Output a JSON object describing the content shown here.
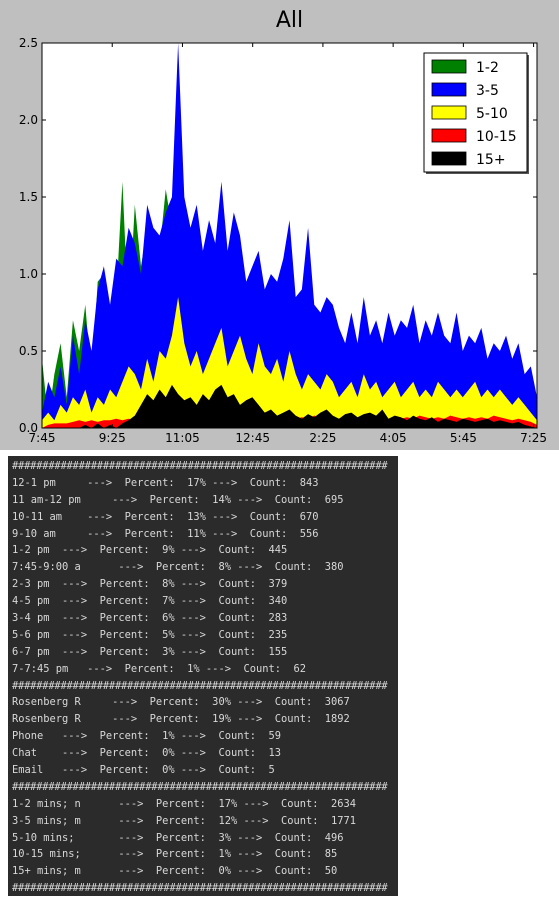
{
  "chart_data": {
    "type": "area",
    "title": "All",
    "xlabel": "",
    "ylabel": "",
    "ylim": [
      0,
      2.5
    ],
    "yticks": [
      "0.0",
      "0.5",
      "1.0",
      "1.5",
      "2.0",
      "2.5"
    ],
    "xticks": [
      "7:45",
      "9:25",
      "11:05",
      "12:45",
      "2:25",
      "4:05",
      "5:45",
      "7:25"
    ],
    "legend_position": "top-right",
    "grid": false,
    "series": [
      {
        "name": "1-2",
        "color": "#008000",
        "x": [
          0,
          2,
          4,
          6,
          8,
          10,
          12,
          14,
          16,
          18,
          20,
          22,
          24,
          26,
          28,
          30,
          32,
          34,
          36,
          38,
          40,
          42,
          44,
          46,
          48,
          50,
          52,
          54,
          56,
          58,
          60,
          62,
          64,
          66,
          68,
          70,
          72,
          74,
          76,
          78,
          80,
          82,
          84,
          86,
          88,
          90,
          92,
          94,
          96,
          98,
          100,
          102,
          104,
          106,
          108,
          110,
          112,
          114,
          116,
          118,
          120,
          122,
          124,
          126,
          128,
          130,
          132,
          134,
          136,
          138,
          140,
          142,
          144,
          146,
          148,
          150,
          152,
          154,
          156,
          158,
          160
        ],
        "values": [
          0.45,
          0.05,
          0.35,
          0.55,
          0.2,
          0.7,
          0.5,
          0.8,
          0.3,
          0.95,
          1.0,
          0.6,
          0.85,
          1.6,
          0.7,
          1.45,
          1.05,
          1.3,
          1.2,
          1.15,
          1.55,
          1.3,
          1.4,
          1.1,
          0.95,
          1.1,
          1.0,
          0.9,
          0.85,
          0.95,
          0.7,
          0.95,
          0.65,
          0.75,
          0.55,
          0.95,
          0.6,
          0.75,
          0.55,
          0.5,
          0.45,
          0.55,
          0.35,
          0.6,
          0.5,
          0.55,
          0.4,
          0.45,
          0.6,
          0.45,
          0.7,
          0.4,
          0.55,
          0.4,
          0.65,
          0.5,
          0.4,
          0.45,
          0.35,
          0.5,
          0.3,
          0.55,
          0.4,
          0.35,
          0.3,
          0.45,
          0.3,
          0.4,
          0.35,
          0.5,
          0.4,
          0.35,
          0.45,
          0.3,
          0.5,
          0.35,
          0.3,
          0.25,
          0.3,
          0.2,
          0.1
        ]
      },
      {
        "name": "3-5",
        "color": "#0000ff",
        "x": [
          0,
          2,
          4,
          6,
          8,
          10,
          12,
          14,
          16,
          18,
          20,
          22,
          24,
          26,
          28,
          30,
          32,
          34,
          36,
          38,
          40,
          42,
          44,
          46,
          48,
          50,
          52,
          54,
          56,
          58,
          60,
          62,
          64,
          66,
          68,
          70,
          72,
          74,
          76,
          78,
          80,
          82,
          84,
          86,
          88,
          90,
          92,
          94,
          96,
          98,
          100,
          102,
          104,
          106,
          108,
          110,
          112,
          114,
          116,
          118,
          120,
          122,
          124,
          126,
          128,
          130,
          132,
          134,
          136,
          138,
          140,
          142,
          144,
          146,
          148,
          150,
          152,
          154,
          156,
          158,
          160
        ],
        "values": [
          0.1,
          0.3,
          0.2,
          0.4,
          0.15,
          0.6,
          0.35,
          0.7,
          0.5,
          0.9,
          1.05,
          0.8,
          1.1,
          1.05,
          1.3,
          1.2,
          1.0,
          1.45,
          1.3,
          1.25,
          1.4,
          1.5,
          2.5,
          1.5,
          1.3,
          1.45,
          1.15,
          1.35,
          1.2,
          1.6,
          1.15,
          1.4,
          1.25,
          0.95,
          1.05,
          1.15,
          0.9,
          1.0,
          0.95,
          1.1,
          1.35,
          0.85,
          0.9,
          1.3,
          0.8,
          0.75,
          0.85,
          0.8,
          0.65,
          0.55,
          0.75,
          0.55,
          0.85,
          0.6,
          0.7,
          0.55,
          0.75,
          0.6,
          0.7,
          0.65,
          0.8,
          0.55,
          0.7,
          0.6,
          0.75,
          0.6,
          0.55,
          0.75,
          0.5,
          0.6,
          0.55,
          0.65,
          0.45,
          0.55,
          0.5,
          0.6,
          0.45,
          0.55,
          0.35,
          0.4,
          0.2
        ]
      },
      {
        "name": "5-10",
        "color": "#ffff00",
        "x": [
          0,
          2,
          4,
          6,
          8,
          10,
          12,
          14,
          16,
          18,
          20,
          22,
          24,
          26,
          28,
          30,
          32,
          34,
          36,
          38,
          40,
          42,
          44,
          46,
          48,
          50,
          52,
          54,
          56,
          58,
          60,
          62,
          64,
          66,
          68,
          70,
          72,
          74,
          76,
          78,
          80,
          82,
          84,
          86,
          88,
          90,
          92,
          94,
          96,
          98,
          100,
          102,
          104,
          106,
          108,
          110,
          112,
          114,
          116,
          118,
          120,
          122,
          124,
          126,
          128,
          130,
          132,
          134,
          136,
          138,
          140,
          142,
          144,
          146,
          148,
          150,
          152,
          154,
          156,
          158,
          160
        ],
        "values": [
          0.05,
          0.1,
          0.05,
          0.15,
          0.1,
          0.2,
          0.15,
          0.25,
          0.1,
          0.2,
          0.15,
          0.25,
          0.2,
          0.3,
          0.4,
          0.35,
          0.25,
          0.45,
          0.3,
          0.5,
          0.45,
          0.6,
          0.85,
          0.55,
          0.4,
          0.5,
          0.35,
          0.45,
          0.55,
          0.65,
          0.4,
          0.5,
          0.6,
          0.45,
          0.35,
          0.55,
          0.4,
          0.35,
          0.45,
          0.3,
          0.5,
          0.35,
          0.25,
          0.35,
          0.3,
          0.25,
          0.35,
          0.3,
          0.2,
          0.25,
          0.3,
          0.2,
          0.35,
          0.25,
          0.3,
          0.2,
          0.25,
          0.3,
          0.2,
          0.25,
          0.3,
          0.2,
          0.25,
          0.2,
          0.3,
          0.25,
          0.2,
          0.25,
          0.2,
          0.25,
          0.3,
          0.2,
          0.25,
          0.2,
          0.25,
          0.2,
          0.15,
          0.2,
          0.15,
          0.1,
          0.05
        ]
      },
      {
        "name": "10-15",
        "color": "#ff0000",
        "x": [
          0,
          2,
          4,
          6,
          8,
          10,
          12,
          14,
          16,
          18,
          20,
          22,
          24,
          26,
          28,
          30,
          32,
          34,
          36,
          38,
          40,
          42,
          44,
          46,
          48,
          50,
          52,
          54,
          56,
          58,
          60,
          62,
          64,
          66,
          68,
          70,
          72,
          74,
          76,
          78,
          80,
          82,
          84,
          86,
          88,
          90,
          92,
          94,
          96,
          98,
          100,
          102,
          104,
          106,
          108,
          110,
          112,
          114,
          116,
          118,
          120,
          122,
          124,
          126,
          128,
          130,
          132,
          134,
          136,
          138,
          140,
          142,
          144,
          146,
          148,
          150,
          152,
          154,
          156,
          158,
          160
        ],
        "values": [
          0,
          0.02,
          0.03,
          0.03,
          0.03,
          0.04,
          0.05,
          0.04,
          0.05,
          0.04,
          0.05,
          0.05,
          0.06,
          0.05,
          0.06,
          0.05,
          0.07,
          0.06,
          0.08,
          0.06,
          0.08,
          0.07,
          0.1,
          0.08,
          0.07,
          0.06,
          0.07,
          0.08,
          0.12,
          0.06,
          0.09,
          0.07,
          0.08,
          0.06,
          0.07,
          0.09,
          0.06,
          0.07,
          0.06,
          0.08,
          0.07,
          0.06,
          0.07,
          0.06,
          0.08,
          0.07,
          0.06,
          0.07,
          0.06,
          0.08,
          0.07,
          0.06,
          0.07,
          0.06,
          0.08,
          0.07,
          0.06,
          0.07,
          0.06,
          0.07,
          0.06,
          0.08,
          0.07,
          0.06,
          0.07,
          0.06,
          0.08,
          0.07,
          0.06,
          0.07,
          0.06,
          0.07,
          0.06,
          0.08,
          0.07,
          0.06,
          0.05,
          0.06,
          0.05,
          0.04,
          0.02
        ]
      },
      {
        "name": "15+",
        "color": "#000000",
        "x": [
          0,
          2,
          4,
          6,
          8,
          10,
          12,
          14,
          16,
          18,
          20,
          22,
          24,
          26,
          28,
          30,
          32,
          34,
          36,
          38,
          40,
          42,
          44,
          46,
          48,
          50,
          52,
          54,
          56,
          58,
          60,
          62,
          64,
          66,
          68,
          70,
          72,
          74,
          76,
          78,
          80,
          82,
          84,
          86,
          88,
          90,
          92,
          94,
          96,
          98,
          100,
          102,
          104,
          106,
          108,
          110,
          112,
          114,
          116,
          118,
          120,
          122,
          124,
          126,
          128,
          130,
          132,
          134,
          136,
          138,
          140,
          142,
          144,
          146,
          148,
          150,
          152,
          154,
          156,
          158,
          160
        ],
        "values": [
          0,
          0,
          0,
          0,
          0,
          0,
          0,
          0.02,
          0,
          0.03,
          0,
          0.02,
          0,
          0.03,
          0.05,
          0.08,
          0.15,
          0.22,
          0.18,
          0.25,
          0.2,
          0.28,
          0.22,
          0.18,
          0.2,
          0.15,
          0.22,
          0.18,
          0.25,
          0.28,
          0.2,
          0.22,
          0.15,
          0.18,
          0.2,
          0.15,
          0.1,
          0.12,
          0.08,
          0.1,
          0.12,
          0.08,
          0.06,
          0.09,
          0.07,
          0.1,
          0.12,
          0.08,
          0.06,
          0.09,
          0.1,
          0.07,
          0.09,
          0.1,
          0.08,
          0.12,
          0.06,
          0.08,
          0.07,
          0.05,
          0.08,
          0.06,
          0.05,
          0.07,
          0.04,
          0.06,
          0.05,
          0.04,
          0.06,
          0.05,
          0.04,
          0.05,
          0.06,
          0.04,
          0.05,
          0.04,
          0.03,
          0.04,
          0.02,
          0.01,
          0
        ]
      }
    ]
  },
  "console": {
    "lines": [
      {
        "text": "##############################################################",
        "sep": true
      },
      {
        "text": "12-1 pm     --->  Percent:  17% --->  Count:  843"
      },
      {
        "text": "11 am-12 pm     --->  Percent:  14% --->  Count:  695"
      },
      {
        "text": "10-11 am    --->  Percent:  13% --->  Count:  670"
      },
      {
        "text": "9-10 am     --->  Percent:  11% --->  Count:  556"
      },
      {
        "text": "1-2 pm  --->  Percent:  9% --->  Count:  445"
      },
      {
        "text": "7:45-9:00 a      --->  Percent:  8% --->  Count:  380"
      },
      {
        "text": "2-3 pm  --->  Percent:  8% --->  Count:  379"
      },
      {
        "text": "4-5 pm  --->  Percent:  7% --->  Count:  340"
      },
      {
        "text": "3-4 pm  --->  Percent:  6% --->  Count:  283"
      },
      {
        "text": "5-6 pm  --->  Percent:  5% --->  Count:  235"
      },
      {
        "text": "6-7 pm  --->  Percent:  3% --->  Count:  155"
      },
      {
        "text": "7-7:45 pm   --->  Percent:  1% --->  Count:  62"
      },
      {
        "text": "##############################################################",
        "sep": true
      },
      {
        "text": "Rosenberg R     --->  Percent:  30% --->  Count:  3067"
      },
      {
        "text": "Rosenberg R     --->  Percent:  19% --->  Count:  1892"
      },
      {
        "text": "Phone   --->  Percent:  1% --->  Count:  59"
      },
      {
        "text": "Chat    --->  Percent:  0% --->  Count:  13"
      },
      {
        "text": "Email   --->  Percent:  0% --->  Count:  5"
      },
      {
        "text": "##############################################################",
        "sep": true
      },
      {
        "text": "1-2 mins; n      --->  Percent:  17% --->  Count:  2634"
      },
      {
        "text": "3-5 mins; m      --->  Percent:  12% --->  Count:  1771"
      },
      {
        "text": "5-10 mins;       --->  Percent:  3% --->  Count:  496"
      },
      {
        "text": "10-15 mins;      --->  Percent:  1% --->  Count:  85"
      },
      {
        "text": "15+ mins; m      --->  Percent:  0% --->  Count:  50"
      },
      {
        "text": "##############################################################",
        "sep": true
      }
    ]
  }
}
